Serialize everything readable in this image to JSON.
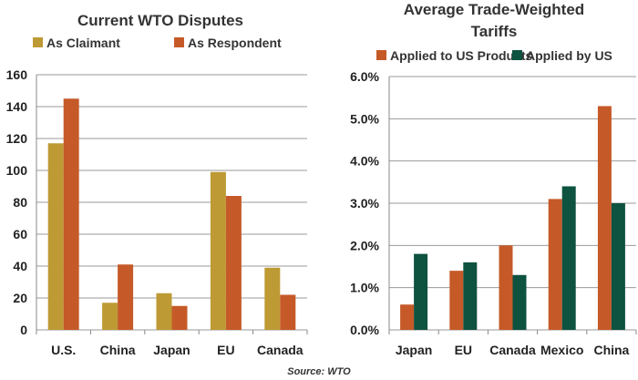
{
  "source": "Source: WTO",
  "chart_data": [
    {
      "type": "bar",
      "title": "Current WTO Disputes",
      "categories": [
        "U.S.",
        "China",
        "Japan",
        "EU",
        "Canada"
      ],
      "series": [
        {
          "name": "As Claimant",
          "color": "#BE9A35",
          "values": [
            117,
            17,
            23,
            99,
            39
          ]
        },
        {
          "name": "As Respondent",
          "color": "#C55A28",
          "values": [
            145,
            41,
            15,
            84,
            22
          ]
        }
      ],
      "ylim": [
        0,
        160
      ],
      "yticks": [
        "0",
        "20",
        "40",
        "60",
        "80",
        "100",
        "120",
        "140",
        "160"
      ],
      "grid": true,
      "legend": "top"
    },
    {
      "type": "bar",
      "title": "Average Trade-Weighted Tariffs",
      "categories": [
        "Japan",
        "EU",
        "Canada",
        "Mexico",
        "China"
      ],
      "series": [
        {
          "name": "Applied to US Products",
          "color": "#C55A28",
          "values": [
            0.6,
            1.4,
            2.0,
            3.1,
            5.3
          ]
        },
        {
          "name": "Applied by US",
          "color": "#0E5240",
          "values": [
            1.8,
            1.6,
            1.3,
            3.4,
            3.0
          ]
        }
      ],
      "ylim": [
        0,
        6
      ],
      "yticks": [
        "0.0%",
        "1.0%",
        "2.0%",
        "3.0%",
        "4.0%",
        "5.0%",
        "6.0%"
      ],
      "grid": true,
      "legend": "top"
    }
  ]
}
